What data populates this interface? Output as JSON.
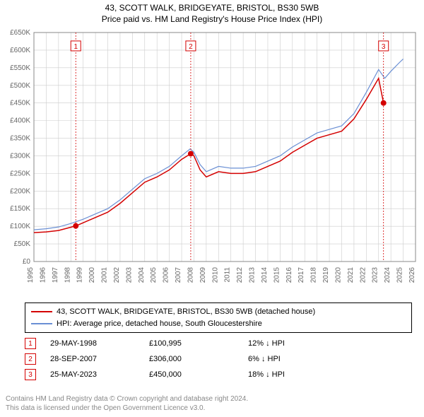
{
  "title_line1": "43, SCOTT WALK, BRIDGEYATE, BRISTOL, BS30 5WB",
  "title_line2": "Price paid vs. HM Land Registry's House Price Index (HPI)",
  "chart": {
    "type": "line",
    "background_color": "#ffffff",
    "grid_color": "#cccccc",
    "axis_color": "#888888",
    "xlim": [
      1995,
      2026
    ],
    "ylim": [
      0,
      650000
    ],
    "ytick_step": 50000,
    "y_ticks": [
      "£0",
      "£50K",
      "£100K",
      "£150K",
      "£200K",
      "£250K",
      "£300K",
      "£350K",
      "£400K",
      "£450K",
      "£500K",
      "£550K",
      "£600K",
      "£650K"
    ],
    "x_ticks": [
      1995,
      1996,
      1997,
      1998,
      1999,
      2000,
      2001,
      2002,
      2003,
      2004,
      2005,
      2006,
      2007,
      2008,
      2009,
      2010,
      2011,
      2012,
      2013,
      2014,
      2015,
      2016,
      2017,
      2018,
      2019,
      2020,
      2021,
      2022,
      2023,
      2024,
      2025,
      2026
    ],
    "tick_fontsize": 10,
    "tick_color": "#666666",
    "series": [
      {
        "name": "property",
        "label": "43, SCOTT WALK, BRIDGEYATE, BRISTOL, BS30 5WB (detached house)",
        "color": "#d40000",
        "line_width": 1.5,
        "points": [
          [
            1995,
            82000
          ],
          [
            1996,
            84000
          ],
          [
            1997,
            88000
          ],
          [
            1998.4,
            100995
          ],
          [
            1999,
            110000
          ],
          [
            2000,
            125000
          ],
          [
            2001,
            140000
          ],
          [
            2002,
            165000
          ],
          [
            2003,
            195000
          ],
          [
            2004,
            225000
          ],
          [
            2005,
            240000
          ],
          [
            2006,
            260000
          ],
          [
            2007,
            290000
          ],
          [
            2007.74,
            306000
          ],
          [
            2008,
            300000
          ],
          [
            2008.5,
            260000
          ],
          [
            2009,
            240000
          ],
          [
            2010,
            255000
          ],
          [
            2011,
            250000
          ],
          [
            2012,
            250000
          ],
          [
            2013,
            255000
          ],
          [
            2014,
            270000
          ],
          [
            2015,
            285000
          ],
          [
            2016,
            310000
          ],
          [
            2017,
            330000
          ],
          [
            2018,
            350000
          ],
          [
            2019,
            360000
          ],
          [
            2020,
            370000
          ],
          [
            2021,
            405000
          ],
          [
            2022,
            460000
          ],
          [
            2023,
            520000
          ],
          [
            2023.4,
            450000
          ]
        ]
      },
      {
        "name": "hpi",
        "label": "HPI: Average price, detached house, South Gloucestershire",
        "color": "#6a8fd4",
        "line_width": 1.2,
        "points": [
          [
            1995,
            90000
          ],
          [
            1996,
            93000
          ],
          [
            1997,
            98000
          ],
          [
            1998,
            108000
          ],
          [
            1999,
            120000
          ],
          [
            2000,
            135000
          ],
          [
            2001,
            150000
          ],
          [
            2002,
            175000
          ],
          [
            2003,
            205000
          ],
          [
            2004,
            235000
          ],
          [
            2005,
            250000
          ],
          [
            2006,
            270000
          ],
          [
            2007,
            300000
          ],
          [
            2007.7,
            320000
          ],
          [
            2008,
            310000
          ],
          [
            2008.5,
            275000
          ],
          [
            2009,
            255000
          ],
          [
            2010,
            270000
          ],
          [
            2011,
            265000
          ],
          [
            2012,
            265000
          ],
          [
            2013,
            270000
          ],
          [
            2014,
            285000
          ],
          [
            2015,
            300000
          ],
          [
            2016,
            325000
          ],
          [
            2017,
            345000
          ],
          [
            2018,
            365000
          ],
          [
            2019,
            375000
          ],
          [
            2020,
            385000
          ],
          [
            2021,
            420000
          ],
          [
            2022,
            480000
          ],
          [
            2023,
            545000
          ],
          [
            2023.5,
            520000
          ],
          [
            2024,
            540000
          ],
          [
            2024.7,
            565000
          ],
          [
            2025,
            575000
          ]
        ]
      }
    ],
    "sale_markers": [
      {
        "n": 1,
        "x": 1998.4,
        "y": 100995,
        "color": "#d40000",
        "label_y": 610000
      },
      {
        "n": 2,
        "x": 2007.74,
        "y": 306000,
        "color": "#d40000",
        "label_y": 610000
      },
      {
        "n": 3,
        "x": 2023.4,
        "y": 450000,
        "color": "#d40000",
        "label_y": 610000
      }
    ],
    "marker_line_color": "#d40000",
    "marker_dot_radius": 4,
    "badge_border_color": "#d40000",
    "badge_fill_color": "#ffffff",
    "badge_text_color": "#d40000",
    "badge_fontsize": 10
  },
  "legend": {
    "items": [
      {
        "swatch_color": "#d40000",
        "text": "43, SCOTT WALK, BRIDGEYATE, BRISTOL, BS30 5WB (detached house)"
      },
      {
        "swatch_color": "#6a8fd4",
        "text": "HPI: Average price, detached house, South Gloucestershire"
      }
    ]
  },
  "sales": [
    {
      "n": 1,
      "date": "29-MAY-1998",
      "price": "£100,995",
      "delta": "12% ↓ HPI",
      "badge_color": "#d40000"
    },
    {
      "n": 2,
      "date": "28-SEP-2007",
      "price": "£306,000",
      "delta": "6% ↓ HPI",
      "badge_color": "#d40000"
    },
    {
      "n": 3,
      "date": "25-MAY-2023",
      "price": "£450,000",
      "delta": "18% ↓ HPI",
      "badge_color": "#d40000"
    }
  ],
  "attribution": {
    "line1": "Contains HM Land Registry data © Crown copyright and database right 2024.",
    "line2": "This data is licensed under the Open Government Licence v3.0."
  }
}
